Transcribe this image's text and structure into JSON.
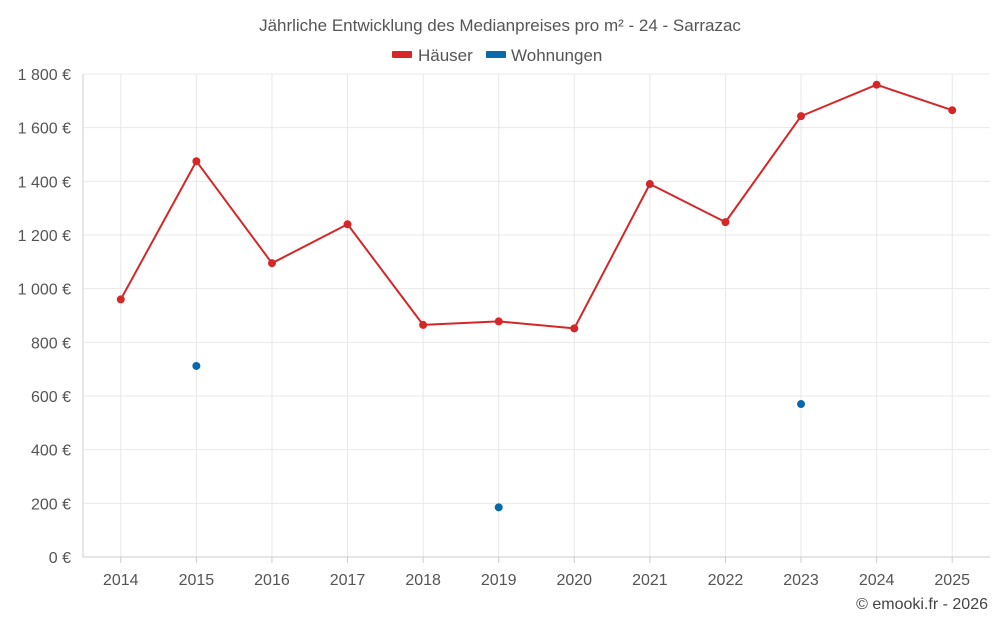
{
  "chart_data": {
    "type": "line",
    "title": "Jährliche Entwicklung des Medianpreises pro m² - 24 - Sarrazac",
    "categories": [
      "2014",
      "2015",
      "2016",
      "2017",
      "2018",
      "2019",
      "2020",
      "2021",
      "2022",
      "2023",
      "2024",
      "2025"
    ],
    "series": [
      {
        "name": "Häuser",
        "color": "#d62728",
        "style": "line-with-markers",
        "values": [
          960,
          1475,
          1095,
          1240,
          865,
          878,
          852,
          1390,
          1248,
          1643,
          1760,
          1665
        ]
      },
      {
        "name": "Wohnungen",
        "color": "#0868ac",
        "style": "markers-only",
        "values": [
          null,
          712,
          null,
          null,
          null,
          185,
          null,
          null,
          null,
          570,
          null,
          null
        ]
      }
    ],
    "ylim": [
      0,
      1800
    ],
    "yticks": [
      0,
      200,
      400,
      600,
      800,
      1000,
      1200,
      1400,
      1600,
      1800
    ],
    "ytick_labels": [
      "0 €",
      "200 €",
      "400 €",
      "600 €",
      "800 €",
      "1 000 €",
      "1 200 €",
      "1 400 €",
      "1 600 €",
      "1 800 €"
    ],
    "xlabel": "",
    "ylabel": "",
    "grid": true,
    "legend_position": "top-center",
    "credit": "© emooki.fr - 2026"
  }
}
